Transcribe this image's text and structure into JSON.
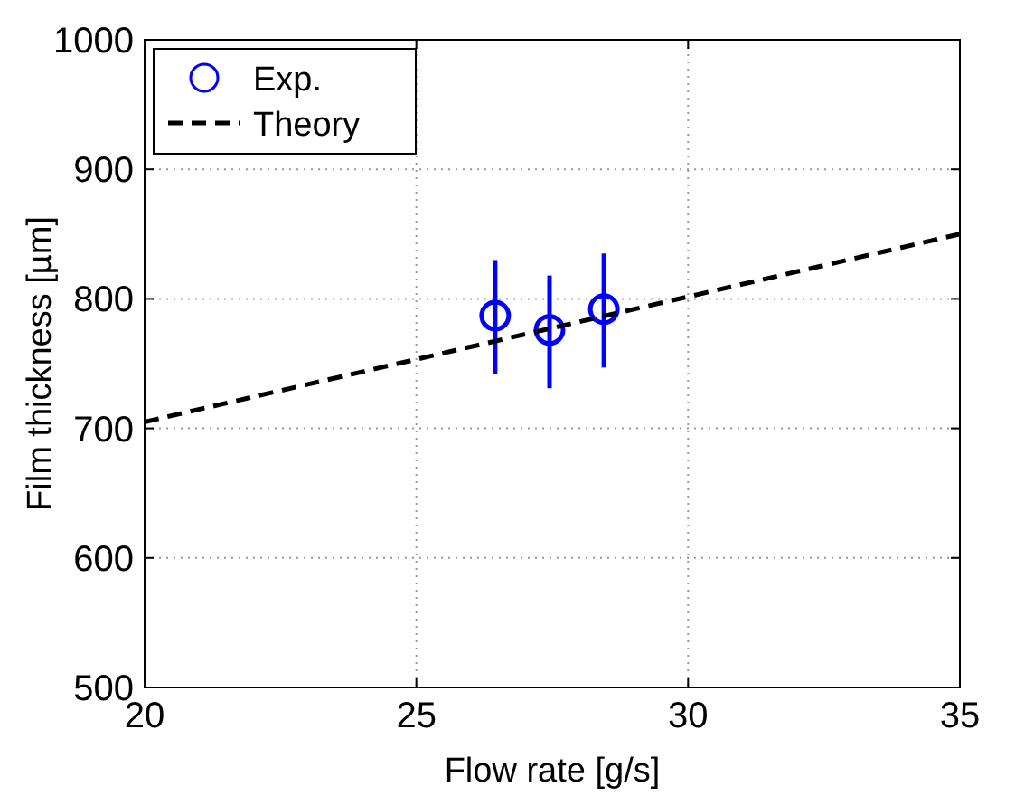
{
  "chart_data": {
    "type": "scatter",
    "xlabel": "Flow rate [g/s]",
    "ylabel": "Film thickness [µm]",
    "xlim": [
      20,
      35
    ],
    "xticks": [
      20,
      25,
      30,
      35
    ],
    "ylim": [
      500,
      1000
    ],
    "yticks": [
      500,
      600,
      700,
      800,
      900,
      1000
    ],
    "grid": true,
    "legend": "top left",
    "series": [
      {
        "name": "Exp.",
        "color": "#0000ff",
        "marker": "circle",
        "x": [
          26.45,
          27.45,
          28.45
        ],
        "values": [
          787,
          776,
          792
        ],
        "errors": [
          [
            742,
            830
          ],
          [
            731,
            818
          ],
          [
            747,
            835
          ]
        ]
      },
      {
        "name": "Theory",
        "type": "line",
        "color": "#000000",
        "line_style": "dashed",
        "marker": "none",
        "x": [
          20,
          35
        ],
        "values": [
          705,
          850
        ]
      }
    ]
  }
}
